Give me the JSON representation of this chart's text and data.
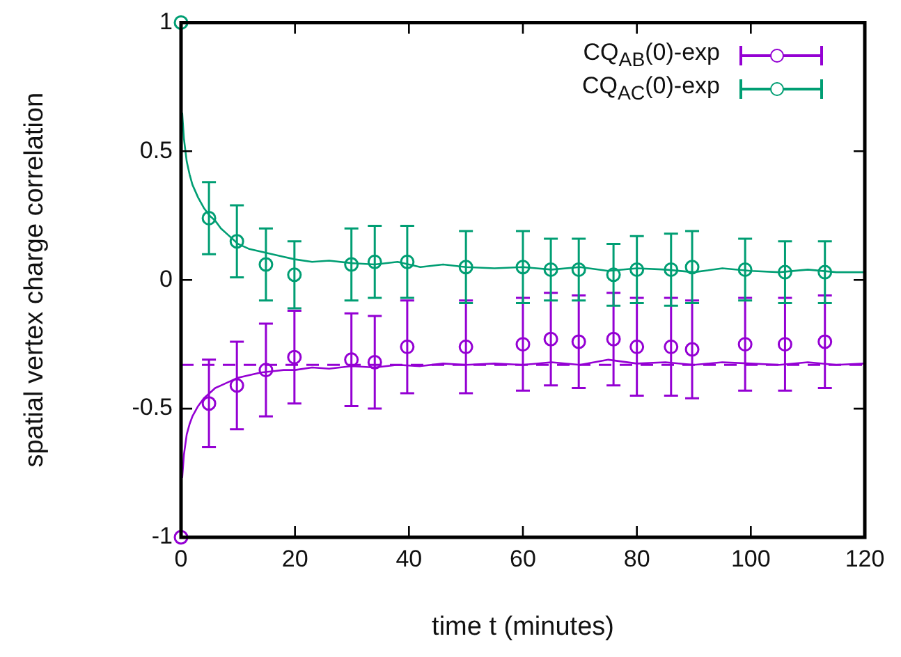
{
  "chart_data": {
    "type": "scatter",
    "xlabel": "time t (minutes)",
    "ylabel": "spatial vertex charge correlation",
    "xlim": [
      0,
      120
    ],
    "xticks": [
      0,
      20,
      40,
      60,
      80,
      100,
      120
    ],
    "ylim": [
      -1,
      1
    ],
    "yticks": [
      -1,
      -0.5,
      0,
      0.5,
      1
    ],
    "grid": false,
    "legend": "top right",
    "marker": "circle",
    "ref_lines": [
      {
        "axis": "y",
        "value": -0.33,
        "color": "#9400d3",
        "line_style": "dashed"
      }
    ],
    "series": [
      {
        "type": "line",
        "color": "#009e73",
        "marker": "none",
        "x": [
          0.2,
          0.5,
          1,
          1.5,
          2,
          3,
          4,
          5,
          6,
          7,
          8,
          9,
          10,
          12,
          14,
          16,
          18,
          20,
          23,
          26,
          30,
          34,
          38,
          42,
          46,
          50,
          55,
          60,
          65,
          70,
          75,
          80,
          85,
          90,
          95,
          100,
          105,
          110,
          115,
          120
        ],
        "values": [
          0.65,
          0.55,
          0.46,
          0.41,
          0.37,
          0.32,
          0.28,
          0.25,
          0.23,
          0.2,
          0.18,
          0.16,
          0.14,
          0.12,
          0.11,
          0.1,
          0.09,
          0.08,
          0.07,
          0.075,
          0.065,
          0.06,
          0.07,
          0.05,
          0.06,
          0.05,
          0.045,
          0.05,
          0.04,
          0.05,
          0.035,
          0.045,
          0.04,
          0.03,
          0.045,
          0.035,
          0.03,
          0.04,
          0.03,
          0.03
        ]
      },
      {
        "type": "line",
        "color": "#9400d3",
        "marker": "none",
        "x": [
          0.2,
          0.5,
          1,
          1.5,
          2,
          3,
          4,
          5,
          6,
          7,
          8,
          9,
          10,
          12,
          14,
          16,
          18,
          20,
          23,
          26,
          30,
          34,
          38,
          42,
          46,
          50,
          55,
          60,
          65,
          70,
          75,
          80,
          85,
          90,
          95,
          100,
          105,
          110,
          115,
          120
        ],
        "values": [
          -0.77,
          -0.68,
          -0.6,
          -0.56,
          -0.53,
          -0.49,
          -0.46,
          -0.44,
          -0.42,
          -0.41,
          -0.4,
          -0.39,
          -0.38,
          -0.37,
          -0.36,
          -0.355,
          -0.35,
          -0.35,
          -0.34,
          -0.345,
          -0.335,
          -0.34,
          -0.33,
          -0.335,
          -0.325,
          -0.33,
          -0.325,
          -0.33,
          -0.32,
          -0.33,
          -0.31,
          -0.325,
          -0.32,
          -0.33,
          -0.32,
          -0.325,
          -0.33,
          -0.32,
          -0.33,
          -0.325
        ]
      },
      {
        "name": "CQ$_{AB}$(0)-exp",
        "color": "#9400d3",
        "x": [
          0,
          4.9,
          9.8,
          14.9,
          19.9,
          29.9,
          34,
          39.7,
          50,
          60,
          64.9,
          69.8,
          75.9,
          80,
          86,
          89.7,
          99,
          106,
          113
        ],
        "values": [
          -1,
          -0.48,
          -0.41,
          -0.35,
          -0.3,
          -0.31,
          -0.32,
          -0.26,
          -0.26,
          -0.25,
          -0.23,
          -0.24,
          -0.23,
          -0.26,
          -0.26,
          -0.27,
          -0.25,
          -0.25,
          -0.24
        ],
        "errors": [
          null,
          0.17,
          0.17,
          0.18,
          0.18,
          0.18,
          0.18,
          0.18,
          0.18,
          0.18,
          0.18,
          0.18,
          0.18,
          0.19,
          0.19,
          0.19,
          0.18,
          0.18,
          0.18
        ]
      },
      {
        "name": "CQ$_{AC}$(0)-exp",
        "color": "#009e73",
        "x": [
          0,
          4.9,
          9.8,
          14.9,
          19.9,
          29.9,
          34,
          39.7,
          50,
          60,
          64.9,
          69.8,
          75.9,
          80,
          86,
          89.7,
          99,
          106,
          113
        ],
        "values": [
          1,
          0.24,
          0.15,
          0.06,
          0.02,
          0.06,
          0.07,
          0.07,
          0.05,
          0.05,
          0.04,
          0.04,
          0.02,
          0.04,
          0.04,
          0.05,
          0.04,
          0.03,
          0.03
        ],
        "errors": [
          null,
          0.14,
          0.14,
          0.14,
          0.13,
          0.14,
          0.14,
          0.14,
          0.14,
          0.14,
          0.12,
          0.12,
          0.12,
          0.13,
          0.14,
          0.14,
          0.12,
          0.12,
          0.12
        ]
      }
    ]
  }
}
